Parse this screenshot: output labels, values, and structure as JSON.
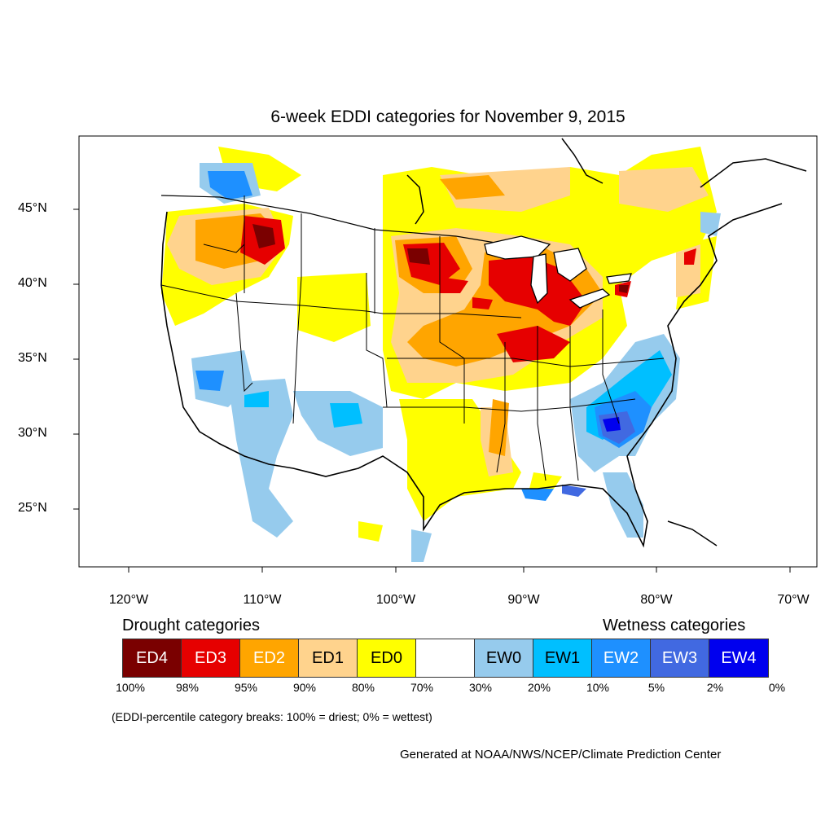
{
  "title": "6-week EDDI categories for November 9, 2015",
  "lat_labels": [
    "45°N",
    "40°N",
    "35°N",
    "30°N",
    "25°N"
  ],
  "lon_labels": [
    "120°W",
    "110°W",
    "100°W",
    "90°W",
    "80°W",
    "70°W"
  ],
  "legend": {
    "drought_heading": "Drought categories",
    "wetness_heading": "Wetness categories",
    "categories": [
      {
        "label": "ED4",
        "color": "#7a0000",
        "text_color": "#ffffff"
      },
      {
        "label": "ED3",
        "color": "#e60000",
        "text_color": "#ffffff"
      },
      {
        "label": "ED2",
        "color": "#ffa500",
        "text_color": "#ffffff"
      },
      {
        "label": "ED1",
        "color": "#ffd38d",
        "text_color": "#000000"
      },
      {
        "label": "ED0",
        "color": "#ffff00",
        "text_color": "#000000"
      },
      {
        "label": "",
        "color": "#ffffff",
        "text_color": "#000000"
      },
      {
        "label": "EW0",
        "color": "#96cbed",
        "text_color": "#000000"
      },
      {
        "label": "EW1",
        "color": "#00bfff",
        "text_color": "#000000"
      },
      {
        "label": "EW2",
        "color": "#1e90ff",
        "text_color": "#ffffff"
      },
      {
        "label": "EW3",
        "color": "#4169e1",
        "text_color": "#ffffff"
      },
      {
        "label": "EW4",
        "color": "#0000ee",
        "text_color": "#ffffff"
      }
    ],
    "percent_breaks": [
      "100%",
      "98%",
      "95%",
      "90%",
      "80%",
      "70%",
      "30%",
      "20%",
      "10%",
      "5%",
      "2%",
      "0%"
    ]
  },
  "note": "(EDDI-percentile category breaks: 100% = driest; 0% = wettest)",
  "credit": "Generated at NOAA/NWS/NCEP/Climate Prediction Center"
}
